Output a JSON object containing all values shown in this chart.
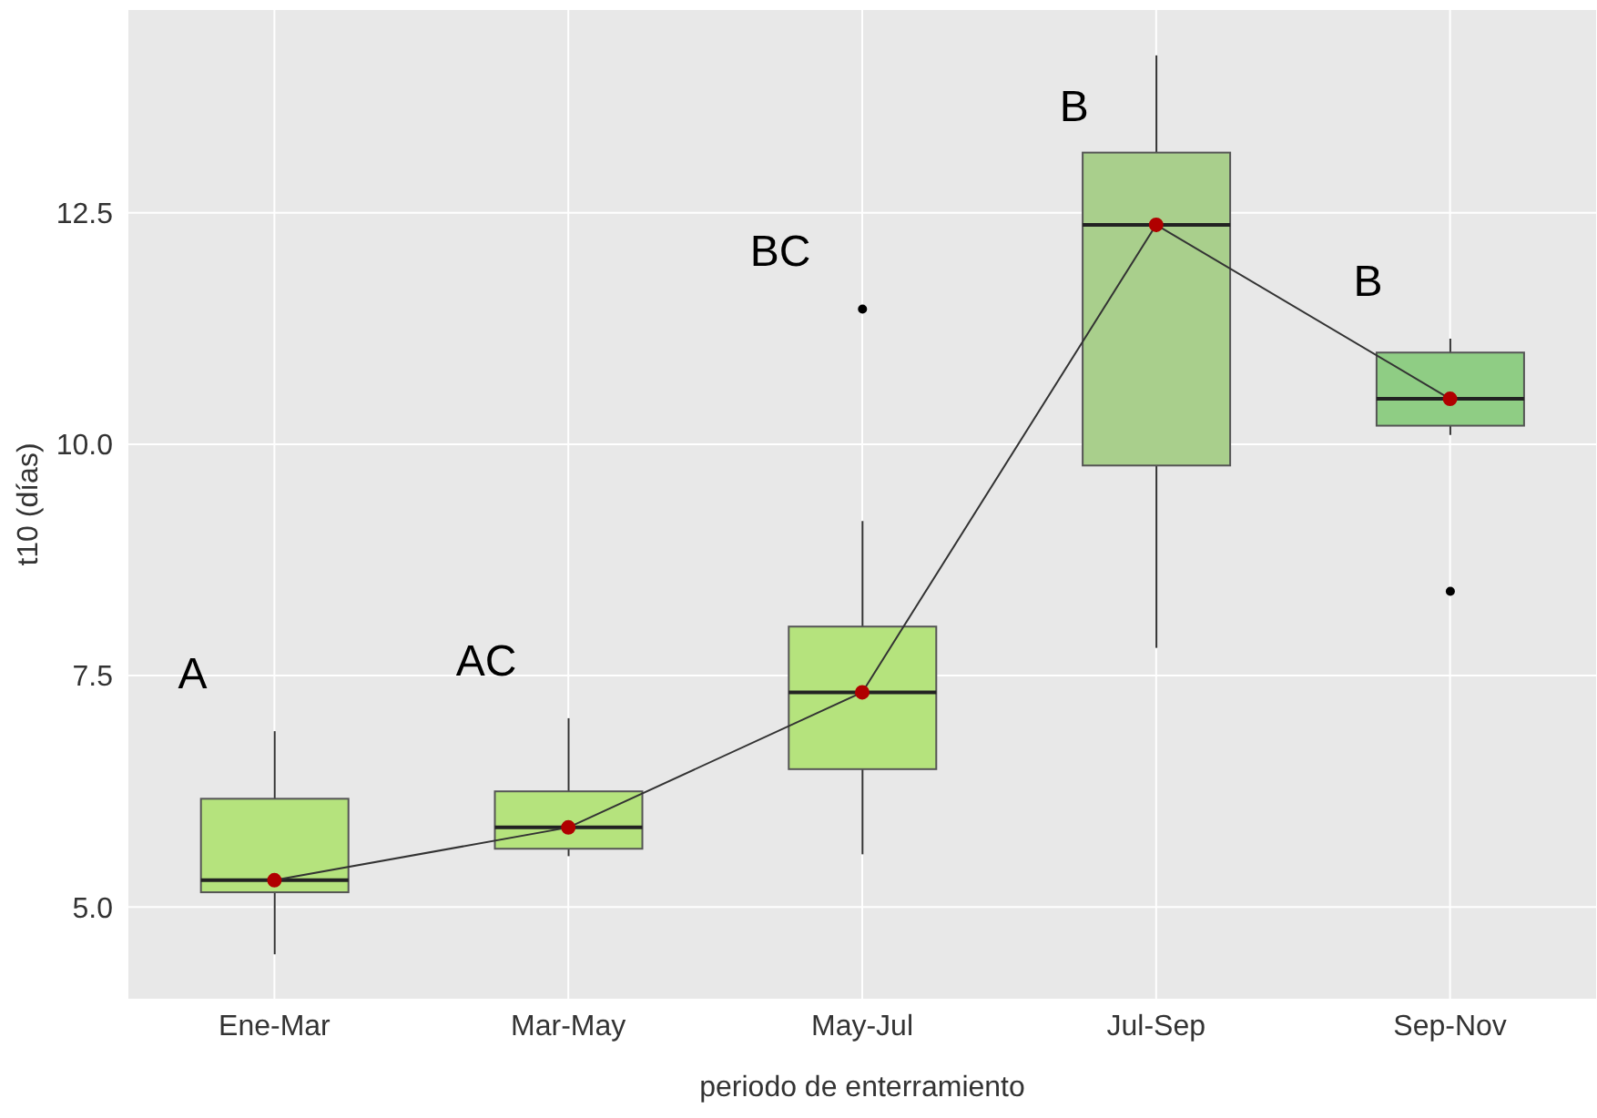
{
  "chart_data": {
    "type": "box",
    "xlabel": "periodo de enterramiento",
    "ylabel": "t10 (días)",
    "categories": [
      "Ene-Mar",
      "Mar-May",
      "May-Jul",
      "Jul-Sep",
      "Sep-Nov"
    ],
    "colors": [
      "#b5e37d",
      "#b5e37d",
      "#b5e37d",
      "#a9cf8c",
      "#8fcd84"
    ],
    "boxes": [
      {
        "low": 4.49,
        "q1": 5.16,
        "median": 5.29,
        "q3": 6.17,
        "high": 6.9
      },
      {
        "low": 5.55,
        "q1": 5.63,
        "median": 5.86,
        "q3": 6.25,
        "high": 7.04
      },
      {
        "low": 5.57,
        "q1": 6.49,
        "median": 7.32,
        "q3": 8.03,
        "high": 9.17,
        "outliers": [
          11.46
        ]
      },
      {
        "low": 7.8,
        "q1": 9.77,
        "median": 12.37,
        "q3": 13.15,
        "high": 14.2
      },
      {
        "low": 10.1,
        "q1": 10.2,
        "median": 10.49,
        "q3": 10.99,
        "high": 11.14,
        "outliers": [
          8.41
        ]
      }
    ],
    "series": [
      {
        "type": "line",
        "color": "#333333",
        "values": [
          5.29,
          5.86,
          7.32,
          12.37,
          10.49
        ]
      },
      {
        "type": "scatter",
        "color": "#b00000",
        "values": [
          5.29,
          5.86,
          7.32,
          12.37,
          10.49
        ]
      }
    ],
    "annotations": [
      "A",
      "AC",
      "BC",
      "B",
      "B"
    ],
    "ylim": [
      4.0,
      14.7
    ],
    "yticks": [
      {
        "value": 5,
        "label": "5.0"
      },
      {
        "value": 7.5,
        "label": "7.5"
      },
      {
        "value": 10,
        "label": "10.0"
      },
      {
        "value": 12.5,
        "label": "12.5"
      }
    ],
    "grid": true
  }
}
